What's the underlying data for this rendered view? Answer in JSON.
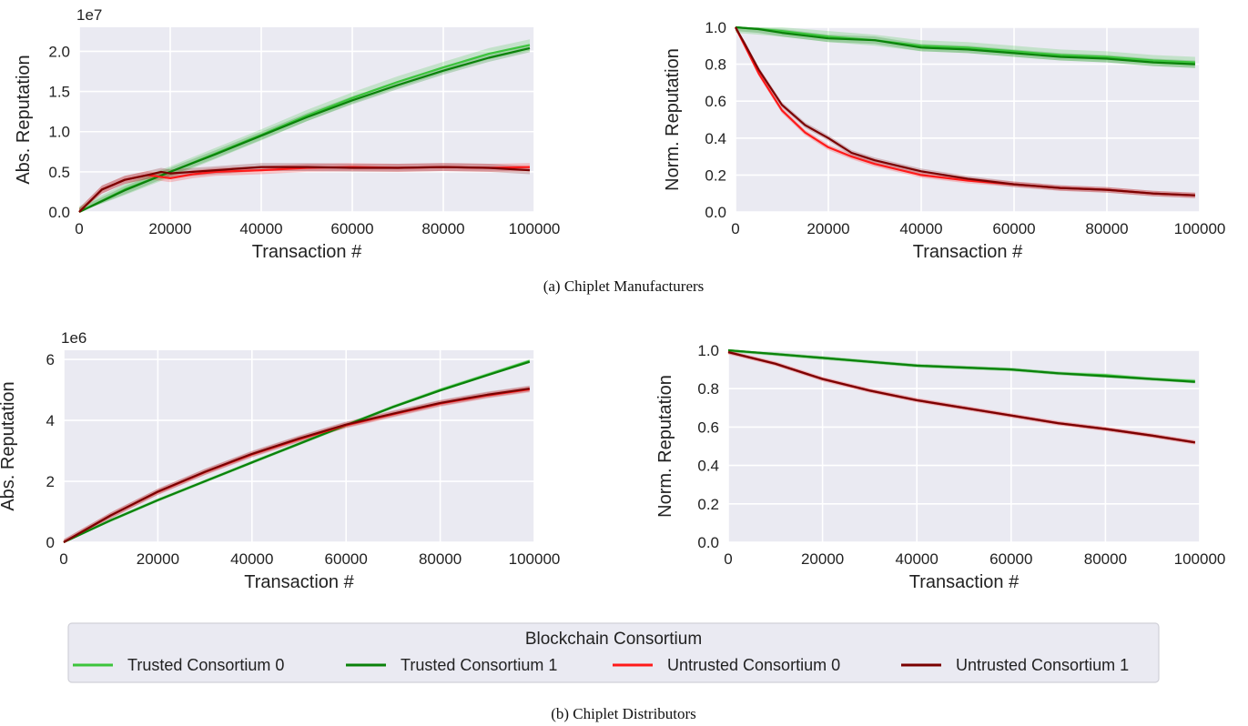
{
  "captions": {
    "a": "(a) Chiplet Manufacturers",
    "b": "(b) Chiplet Distributors"
  },
  "legend": {
    "title": "Blockchain Consortium",
    "entries": [
      {
        "label": "Trusted Consortium 0",
        "color": "#3cc43c"
      },
      {
        "label": "Trusted Consortium 1",
        "color": "#0a820a"
      },
      {
        "label": "Untrusted Consortium 0",
        "color": "#ff1a1a"
      },
      {
        "label": "Untrusted Consortium 1",
        "color": "#7a0000"
      }
    ]
  },
  "chart_data": [
    {
      "id": "a-abs",
      "type": "line",
      "title": "",
      "xlabel": "Transaction #",
      "ylabel": "Abs. Reputation",
      "scale_label": "1e7",
      "xlim": [
        0,
        100000
      ],
      "ylim": [
        0,
        2.3
      ],
      "xticks": [
        0,
        20000,
        40000,
        60000,
        80000,
        100000
      ],
      "xtick_labels": [
        "0",
        "20000",
        "40000",
        "60000",
        "80000",
        "100000"
      ],
      "yticks": [
        0,
        0.5,
        1.0,
        1.5,
        2.0
      ],
      "ytick_labels": [
        "0.0",
        "0.5",
        "1.0",
        "1.5",
        "2.0"
      ],
      "grid": true,
      "series": [
        {
          "name": "Trusted Consortium 0",
          "color": "#3cc43c",
          "band": 0.07,
          "x": [
            0,
            10000,
            20000,
            30000,
            40000,
            50000,
            60000,
            70000,
            80000,
            90000,
            99000
          ],
          "y": [
            0,
            0.28,
            0.5,
            0.73,
            0.96,
            1.2,
            1.42,
            1.62,
            1.8,
            1.97,
            2.08
          ]
        },
        {
          "name": "Trusted Consortium 1",
          "color": "#0a820a",
          "band": 0.05,
          "x": [
            0,
            10000,
            20000,
            30000,
            40000,
            50000,
            60000,
            70000,
            80000,
            90000,
            99000
          ],
          "y": [
            0,
            0.27,
            0.5,
            0.72,
            0.95,
            1.18,
            1.39,
            1.58,
            1.76,
            1.92,
            2.04
          ]
        },
        {
          "name": "Untrusted Consortium 0",
          "color": "#ff1a1a",
          "band": 0.05,
          "x": [
            0,
            5000,
            10000,
            15000,
            20000,
            25000,
            30000,
            40000,
            50000,
            60000,
            70000,
            80000,
            90000,
            99000
          ],
          "y": [
            0,
            0.28,
            0.4,
            0.46,
            0.42,
            0.47,
            0.5,
            0.52,
            0.55,
            0.56,
            0.55,
            0.56,
            0.55,
            0.56
          ]
        },
        {
          "name": "Untrusted Consortium 1",
          "color": "#7a0000",
          "band": 0.05,
          "x": [
            0,
            5000,
            10000,
            15000,
            18000,
            20000,
            25000,
            30000,
            40000,
            50000,
            60000,
            70000,
            80000,
            90000,
            99000
          ],
          "y": [
            0,
            0.28,
            0.4,
            0.46,
            0.5,
            0.48,
            0.5,
            0.52,
            0.56,
            0.56,
            0.55,
            0.55,
            0.56,
            0.55,
            0.52
          ]
        }
      ]
    },
    {
      "id": "a-norm",
      "type": "line",
      "title": "",
      "xlabel": "Transaction #",
      "ylabel": "Norm. Reputation",
      "scale_label": "",
      "xlim": [
        0,
        100000
      ],
      "ylim": [
        0,
        1.0
      ],
      "xticks": [
        0,
        20000,
        40000,
        60000,
        80000,
        100000
      ],
      "xtick_labels": [
        "0",
        "20000",
        "40000",
        "60000",
        "80000",
        "100000"
      ],
      "yticks": [
        0,
        0.2,
        0.4,
        0.6,
        0.8,
        1.0
      ],
      "ytick_labels": [
        "0.0",
        "0.2",
        "0.4",
        "0.6",
        "0.8",
        "1.0"
      ],
      "grid": true,
      "series": [
        {
          "name": "Trusted Consortium 0",
          "color": "#3cc43c",
          "band": 0.03,
          "x": [
            0,
            5000,
            10000,
            20000,
            30000,
            40000,
            50000,
            60000,
            70000,
            80000,
            90000,
            99000
          ],
          "y": [
            1.0,
            0.99,
            0.98,
            0.95,
            0.93,
            0.9,
            0.89,
            0.87,
            0.85,
            0.84,
            0.82,
            0.81
          ]
        },
        {
          "name": "Trusted Consortium 1",
          "color": "#0a820a",
          "band": 0.02,
          "x": [
            0,
            5000,
            10000,
            20000,
            30000,
            40000,
            50000,
            60000,
            70000,
            80000,
            90000,
            99000
          ],
          "y": [
            1.0,
            0.99,
            0.97,
            0.94,
            0.93,
            0.89,
            0.88,
            0.86,
            0.84,
            0.83,
            0.81,
            0.8
          ]
        },
        {
          "name": "Untrusted Consortium 0",
          "color": "#ff1a1a",
          "band": 0.015,
          "x": [
            0,
            2000,
            5000,
            10000,
            15000,
            20000,
            25000,
            30000,
            40000,
            50000,
            60000,
            70000,
            80000,
            90000,
            99000
          ],
          "y": [
            1.0,
            0.9,
            0.75,
            0.55,
            0.43,
            0.35,
            0.3,
            0.26,
            0.2,
            0.17,
            0.15,
            0.13,
            0.12,
            0.1,
            0.09
          ]
        },
        {
          "name": "Untrusted Consortium 1",
          "color": "#7a0000",
          "band": 0.015,
          "x": [
            0,
            2000,
            5000,
            10000,
            15000,
            20000,
            25000,
            30000,
            40000,
            50000,
            60000,
            70000,
            80000,
            90000,
            99000
          ],
          "y": [
            1.0,
            0.91,
            0.77,
            0.58,
            0.47,
            0.4,
            0.32,
            0.28,
            0.22,
            0.18,
            0.15,
            0.13,
            0.12,
            0.1,
            0.09
          ]
        }
      ]
    },
    {
      "id": "b-abs",
      "type": "line",
      "title": "",
      "xlabel": "Transaction #",
      "ylabel": "Abs. Reputation",
      "scale_label": "1e6",
      "xlim": [
        0,
        100000
      ],
      "ylim": [
        0,
        6.3
      ],
      "xticks": [
        0,
        20000,
        40000,
        60000,
        80000,
        100000
      ],
      "xtick_labels": [
        "0",
        "20000",
        "40000",
        "60000",
        "80000",
        "100000"
      ],
      "yticks": [
        0,
        2,
        4,
        6
      ],
      "ytick_labels": [
        "0",
        "2",
        "4",
        "6"
      ],
      "grid": true,
      "series": [
        {
          "name": "Trusted Consortium 0",
          "color": "#3cc43c",
          "band": 0.06,
          "x": [
            0,
            10000,
            20000,
            30000,
            40000,
            50000,
            60000,
            70000,
            80000,
            90000,
            99000
          ],
          "y": [
            0,
            0.72,
            1.38,
            2.0,
            2.62,
            3.23,
            3.84,
            4.45,
            5.0,
            5.5,
            5.95
          ]
        },
        {
          "name": "Trusted Consortium 1",
          "color": "#0a820a",
          "band": 0.04,
          "x": [
            0,
            10000,
            20000,
            30000,
            40000,
            50000,
            60000,
            70000,
            80000,
            90000,
            99000
          ],
          "y": [
            0,
            0.72,
            1.38,
            2.0,
            2.62,
            3.23,
            3.84,
            4.44,
            4.98,
            5.48,
            5.92
          ]
        },
        {
          "name": "Untrusted Consortium 0",
          "color": "#ff1a1a",
          "band": 0.1,
          "x": [
            0,
            10000,
            20000,
            30000,
            40000,
            50000,
            60000,
            70000,
            80000,
            90000,
            99000
          ],
          "y": [
            0,
            0.88,
            1.65,
            2.3,
            2.88,
            3.38,
            3.84,
            4.2,
            4.55,
            4.82,
            5.02
          ]
        },
        {
          "name": "Untrusted Consortium 1",
          "color": "#7a0000",
          "band": 0.1,
          "x": [
            0,
            10000,
            20000,
            30000,
            40000,
            50000,
            60000,
            70000,
            80000,
            90000,
            99000
          ],
          "y": [
            0,
            0.88,
            1.66,
            2.31,
            2.9,
            3.4,
            3.86,
            4.22,
            4.57,
            4.84,
            5.04
          ]
        }
      ]
    },
    {
      "id": "b-norm",
      "type": "line",
      "title": "",
      "xlabel": "Transaction #",
      "ylabel": "Norm. Reputation",
      "scale_label": "",
      "xlim": [
        0,
        100000
      ],
      "ylim": [
        0,
        1.0
      ],
      "xticks": [
        0,
        20000,
        40000,
        60000,
        80000,
        100000
      ],
      "xtick_labels": [
        "0",
        "20000",
        "40000",
        "60000",
        "80000",
        "100000"
      ],
      "yticks": [
        0,
        0.2,
        0.4,
        0.6,
        0.8,
        1.0
      ],
      "ytick_labels": [
        "0.0",
        "0.2",
        "0.4",
        "0.6",
        "0.8",
        "1.0"
      ],
      "grid": true,
      "series": [
        {
          "name": "Trusted Consortium 0",
          "color": "#3cc43c",
          "band": 0.01,
          "x": [
            0,
            10000,
            20000,
            30000,
            40000,
            50000,
            60000,
            70000,
            80000,
            90000,
            99000
          ],
          "y": [
            1.0,
            0.98,
            0.96,
            0.94,
            0.92,
            0.91,
            0.9,
            0.88,
            0.87,
            0.85,
            0.84
          ]
        },
        {
          "name": "Trusted Consortium 1",
          "color": "#0a820a",
          "band": 0.008,
          "x": [
            0,
            10000,
            20000,
            30000,
            40000,
            50000,
            60000,
            70000,
            80000,
            90000,
            99000
          ],
          "y": [
            1.0,
            0.98,
            0.96,
            0.94,
            0.92,
            0.91,
            0.9,
            0.88,
            0.865,
            0.85,
            0.835
          ]
        },
        {
          "name": "Untrusted Consortium 0",
          "color": "#ff1a1a",
          "band": 0.012,
          "x": [
            0,
            10000,
            20000,
            30000,
            40000,
            50000,
            60000,
            70000,
            80000,
            90000,
            99000
          ],
          "y": [
            0.99,
            0.93,
            0.85,
            0.79,
            0.74,
            0.7,
            0.66,
            0.62,
            0.59,
            0.555,
            0.52
          ]
        },
        {
          "name": "Untrusted Consortium 1",
          "color": "#7a0000",
          "band": 0.008,
          "x": [
            0,
            10000,
            20000,
            30000,
            40000,
            50000,
            60000,
            70000,
            80000,
            90000,
            99000
          ],
          "y": [
            0.99,
            0.93,
            0.85,
            0.79,
            0.74,
            0.7,
            0.66,
            0.62,
            0.59,
            0.555,
            0.52
          ]
        }
      ]
    }
  ]
}
